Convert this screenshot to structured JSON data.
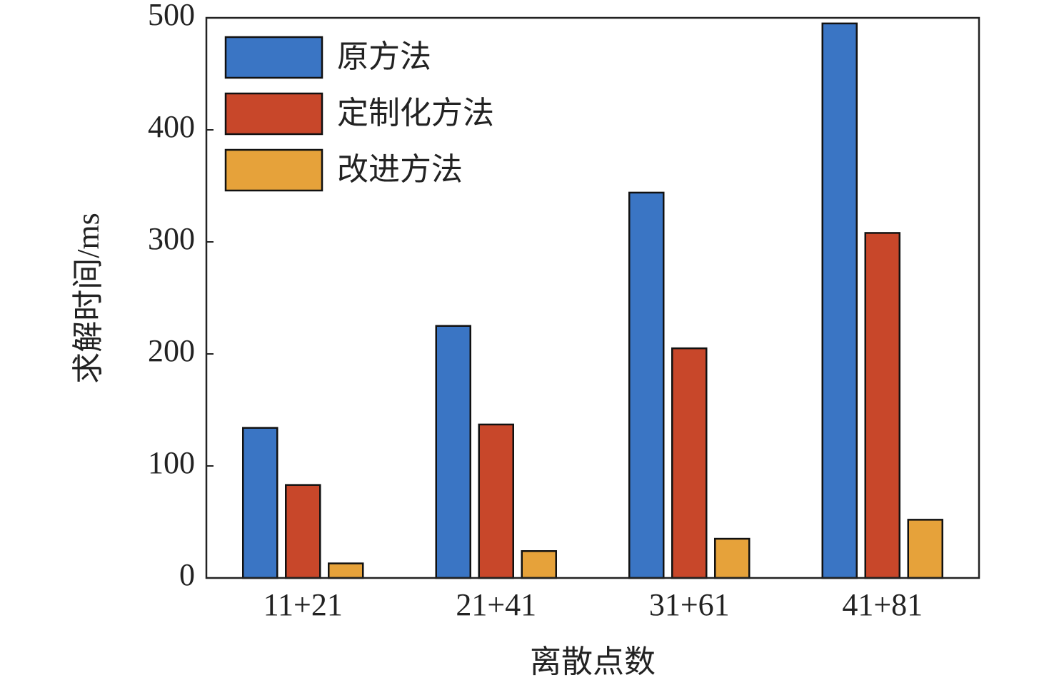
{
  "chart_data": {
    "type": "bar",
    "x_label": "离散点数",
    "y_label": "求解时间/ms",
    "categories": [
      "11+21",
      "21+41",
      "31+61",
      "41+81"
    ],
    "series": [
      {
        "name": "原方法",
        "color": "#3a75c4",
        "values": [
          134,
          225,
          344,
          495
        ]
      },
      {
        "name": "定制化方法",
        "color": "#c8472a",
        "values": [
          83,
          137,
          205,
          308
        ]
      },
      {
        "name": "改进方法",
        "color": "#e6a23a",
        "values": [
          13,
          24,
          35,
          52
        ]
      }
    ],
    "ylim": [
      0,
      500
    ],
    "yticks": [
      0,
      100,
      200,
      300,
      400,
      500
    ],
    "legend": "upper left"
  }
}
